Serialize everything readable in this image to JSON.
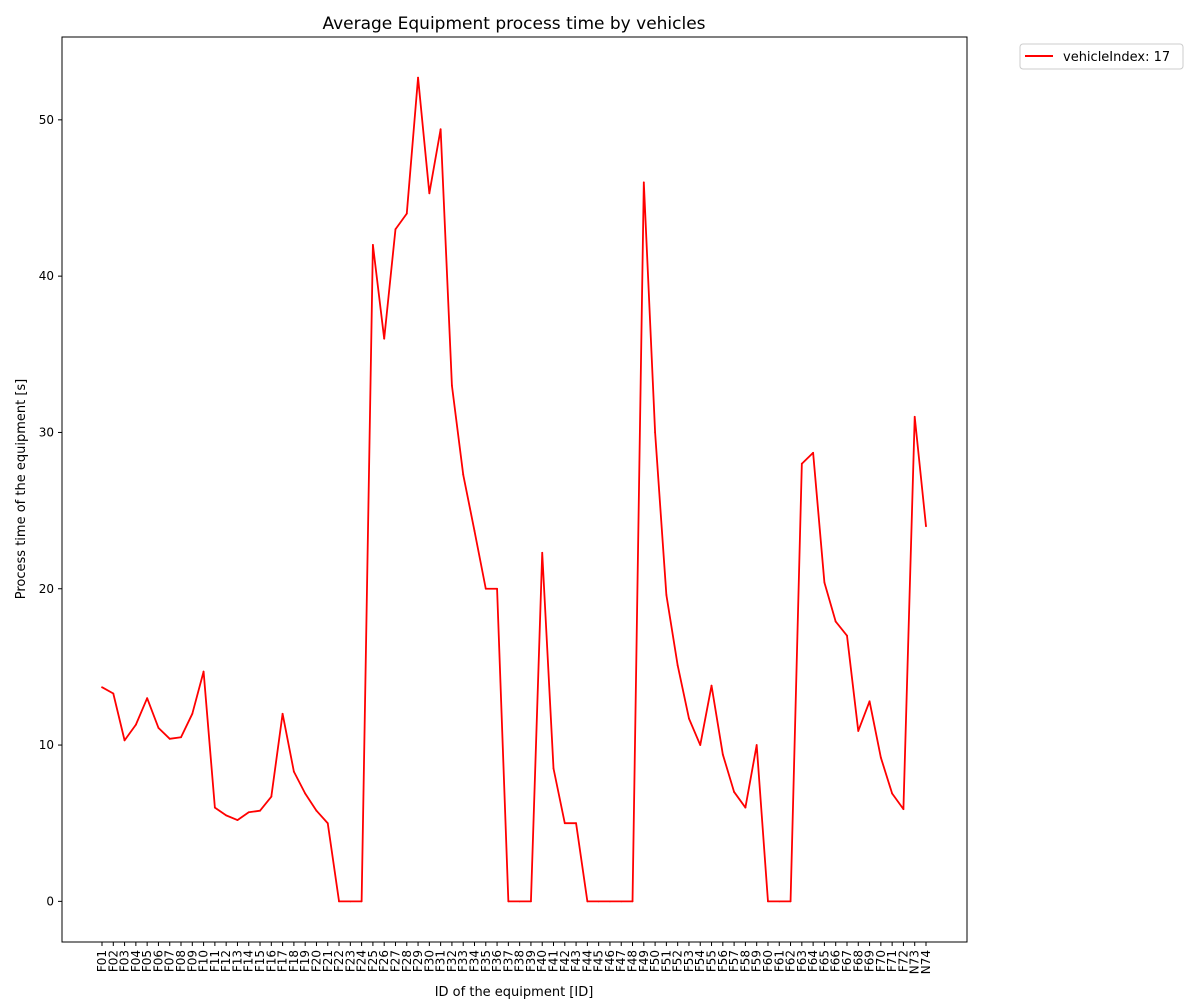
{
  "chart_data": {
    "type": "line",
    "title": "Average Equipment process time by vehicles",
    "xlabel": "ID of the equipment [ID]",
    "ylabel": "Process time of the equipment [s]",
    "ylim": [
      -2.6,
      55.3
    ],
    "yticks": [
      0,
      10,
      20,
      30,
      40,
      50
    ],
    "grid": false,
    "legend_position": "outside-top-right",
    "categories": [
      "F01",
      "F02",
      "F03",
      "F04",
      "F05",
      "F06",
      "F07",
      "F08",
      "F09",
      "F10",
      "F11",
      "F12",
      "F13",
      "F14",
      "F15",
      "F16",
      "F17",
      "F18",
      "F19",
      "F20",
      "F21",
      "F22",
      "F23",
      "F24",
      "F25",
      "F26",
      "F27",
      "F28",
      "F29",
      "F30",
      "F31",
      "F32",
      "F33",
      "F34",
      "F35",
      "F36",
      "F37",
      "F38",
      "F39",
      "F40",
      "F41",
      "F42",
      "F43",
      "F44",
      "F45",
      "F46",
      "F47",
      "F48",
      "F49",
      "F50",
      "F51",
      "F52",
      "F53",
      "F54",
      "F55",
      "F56",
      "F57",
      "F58",
      "F59",
      "F60",
      "F61",
      "F62",
      "F63",
      "F64",
      "F65",
      "F66",
      "F67",
      "F68",
      "F69",
      "F70",
      "F71",
      "F72",
      "N73",
      "N74"
    ],
    "series": [
      {
        "name": "vehicleIndex: 17",
        "color": "#ff0000",
        "values": [
          13.7,
          13.3,
          10.3,
          11.3,
          13.0,
          11.1,
          10.4,
          10.5,
          12.0,
          14.7,
          6.0,
          5.5,
          5.2,
          5.7,
          5.8,
          6.7,
          12.0,
          8.3,
          6.9,
          5.8,
          5.0,
          0,
          0,
          0,
          42.0,
          36.0,
          43.0,
          44.0,
          52.7,
          45.3,
          49.4,
          33.0,
          27.3,
          23.7,
          20.0,
          20.0,
          0,
          0,
          0,
          22.3,
          8.5,
          5.0,
          5.0,
          0,
          0,
          0,
          0,
          0,
          46.0,
          30.0,
          19.6,
          15.1,
          11.7,
          10.0,
          13.8,
          9.4,
          7.0,
          6.0,
          10.0,
          0,
          0,
          0,
          28.0,
          28.7,
          20.4,
          17.9,
          17.0,
          10.9,
          12.8,
          9.2,
          6.9,
          5.9,
          31.0,
          24.0
        ]
      }
    ]
  }
}
